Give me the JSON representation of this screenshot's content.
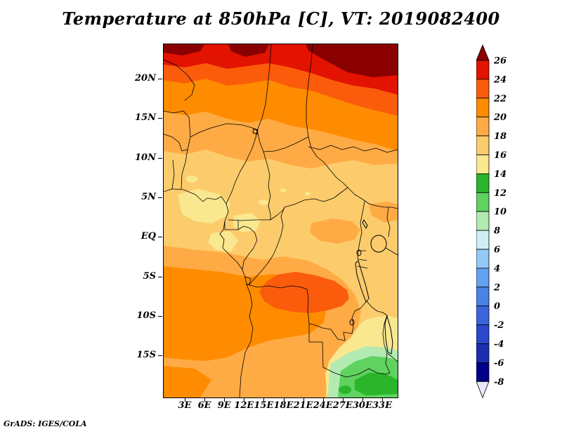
{
  "title": "Temperature at 850hPa [C], VT: 2019082400",
  "footer": "GrADS: IGES/COLA",
  "map": {
    "lat_labels": [
      "20N",
      "15N",
      "10N",
      "5N",
      "EQ",
      "5S",
      "10S",
      "15S"
    ],
    "lon_labels": [
      "3E",
      "6E",
      "9E",
      "12E",
      "15E",
      "18E",
      "21E",
      "24E",
      "27E",
      "30E",
      "33E"
    ]
  },
  "colorbar": {
    "labels": [
      "26",
      "24",
      "22",
      "20",
      "18",
      "16",
      "14",
      "12",
      "10",
      "8",
      "6",
      "4",
      "2",
      "0",
      "-2",
      "-4",
      "-6",
      "-8"
    ],
    "order": [
      "gt_26",
      "24_26",
      "22_24",
      "20_22",
      "18_20",
      "16_18",
      "14_16",
      "12_14",
      "10_12",
      "8_10",
      "6_8",
      "4_6",
      "2_4",
      "0_2",
      "m2_0",
      "m4_m2",
      "m6_m4",
      "m8_m6",
      "lt_m8"
    ]
  },
  "palette": {
    "gt_26": "#8a0000",
    "24_26": "#e21300",
    "22_24": "#fb5c0c",
    "20_22": "#ff8c00",
    "18_20": "#ffab45",
    "16_18": "#fccc6c",
    "14_16": "#f9e88f",
    "12_14": "#2ab52a",
    "10_12": "#5fd25f",
    "8_10": "#b2eab2",
    "6_8": "#cdeff4",
    "4_6": "#93c9f7",
    "2_4": "#63a2f0",
    "0_2": "#4a82e8",
    "m2_0": "#3b64dc",
    "m4_m2": "#2c48cc",
    "m6_m4": "#1c2eb0",
    "m8_m6": "#000088",
    "lt_m8": "#e8e8fb"
  },
  "chart_data": {
    "type": "heatmap",
    "title": "Temperature at 850hPa [C], VT: 2019082400",
    "variable": "Temperature",
    "pressure_level_hPa": 850,
    "units": "C",
    "valid_time": "2019082400",
    "source_label": "GrADS: IGES/COLA",
    "lon_range_deg_east": [
      0,
      35.5
    ],
    "lat_range_deg_north": [
      -20,
      24.5
    ],
    "x_tick_labels": [
      "3E",
      "6E",
      "9E",
      "12E",
      "15E",
      "18E",
      "21E",
      "24E",
      "27E",
      "30E",
      "33E"
    ],
    "y_tick_labels": [
      "20N",
      "15N",
      "10N",
      "5N",
      "EQ",
      "5S",
      "10S",
      "15S"
    ],
    "contour_levels": [
      -8,
      -6,
      -4,
      -2,
      0,
      2,
      4,
      6,
      8,
      10,
      12,
      14,
      16,
      18,
      20,
      22,
      24,
      26
    ],
    "legend_position": "right",
    "grid": "off",
    "approx_field": {
      "lats": [
        22.5,
        20,
        15,
        10,
        5,
        0,
        -5,
        -10,
        -15,
        -19
      ],
      "lons": [
        1.5,
        4.5,
        7.5,
        10.5,
        13.5,
        16.5,
        19.5,
        22.5,
        25.5,
        28.5,
        31.5,
        34.5
      ],
      "values_C": [
        [
          25,
          26,
          26,
          27,
          26,
          26,
          26,
          27,
          27,
          27,
          27,
          26
        ],
        [
          24,
          25,
          25,
          25,
          25,
          25,
          25,
          26,
          26,
          26,
          26,
          25
        ],
        [
          21,
          21,
          21,
          22,
          22,
          21,
          22,
          22,
          23,
          23,
          23,
          23
        ],
        [
          19,
          19,
          19,
          19,
          20,
          19,
          19,
          20,
          20,
          20,
          21,
          21
        ],
        [
          17,
          17,
          17,
          16,
          17,
          17,
          17,
          17,
          18,
          18,
          18,
          18
        ],
        [
          16,
          15,
          16,
          15,
          16,
          17,
          17,
          17,
          17,
          17,
          16,
          17
        ],
        [
          18,
          19,
          19,
          20,
          21,
          22,
          23,
          23,
          22,
          20,
          18,
          17
        ],
        [
          19,
          20,
          20,
          20,
          21,
          21,
          20,
          19,
          18,
          17,
          15,
          15
        ],
        [
          19,
          19,
          20,
          20,
          20,
          19,
          18,
          17,
          15,
          12,
          11,
          10
        ],
        [
          18,
          19,
          19,
          20,
          19,
          19,
          18,
          16,
          13,
          11,
          10,
          11
        ]
      ]
    }
  }
}
